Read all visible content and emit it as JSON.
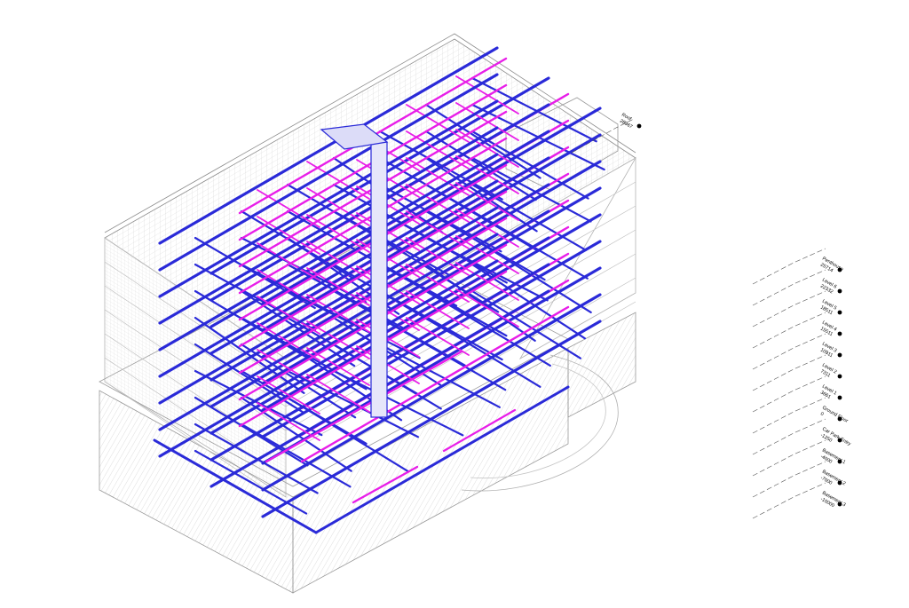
{
  "drawing": {
    "type": "isometric-3d-hvac-view",
    "colors": {
      "background": "#ffffff",
      "building_lines": "#b4b4b4",
      "building_dark": "#8c8c8c",
      "supply_duct": "#2a2ad8",
      "return_duct": "#e81ee8",
      "level_markers": "#555555"
    }
  },
  "levels": [
    {
      "name": "Roof",
      "elevation": "28967"
    },
    {
      "name": "Penthouse",
      "elevation": "25714"
    },
    {
      "name": "Level 6",
      "elevation": "22332"
    },
    {
      "name": "Level 5",
      "elevation": "18511"
    },
    {
      "name": "Level 4",
      "elevation": "15511"
    },
    {
      "name": "Level 3",
      "elevation": "10911"
    },
    {
      "name": "Level 2",
      "elevation": "7311"
    },
    {
      "name": "Level 1",
      "elevation": "3661"
    },
    {
      "name": "Ground Floor",
      "elevation": "0"
    },
    {
      "name": "Car Park Entry",
      "elevation": "-1250"
    },
    {
      "name": "Basement 1",
      "elevation": "-4000"
    },
    {
      "name": "Basement 2",
      "elevation": "-7000"
    },
    {
      "name": "Basement 3",
      "elevation": "-10000"
    }
  ]
}
